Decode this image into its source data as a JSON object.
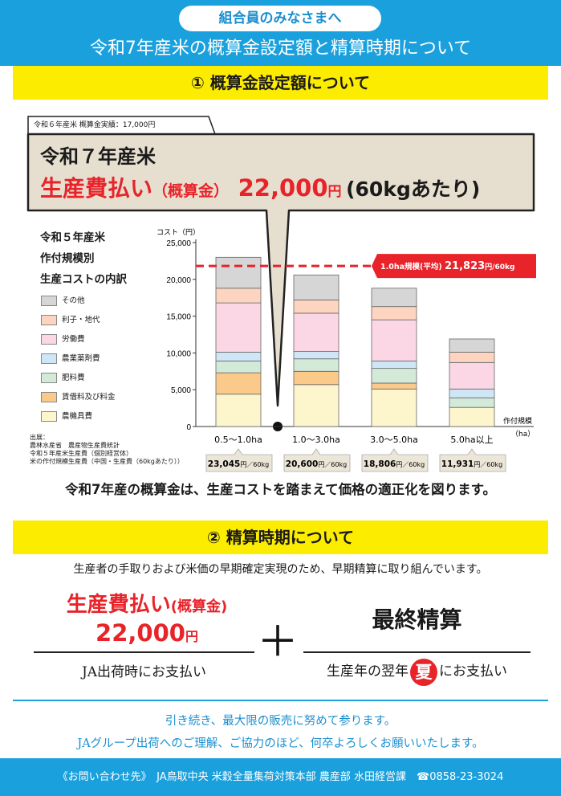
{
  "header": {
    "pill": "組合員のみなさまへ",
    "title": "令和7年産米の概算金設定額と精算時期について"
  },
  "section1": {
    "title": "① 概算金設定額について",
    "prev_tab": "令和６年産米 概算金実績：17,000円",
    "headline_year": "令和７年産米",
    "headline_label": "生産費払い",
    "headline_paren": "（概算金）",
    "headline_amount": "22,000",
    "headline_yen": "円",
    "headline_per": "(60kgあたり)",
    "chart_heading": [
      "令和５年産米",
      "作付規模別",
      "生産コストの内訳"
    ],
    "source_lines": [
      "出展：",
      "農林水産省　農産物生産費統計",
      "令和５年産米生産費（個別経営体）",
      "米の作付規模生産費（中国・生産費（60kgあたり））"
    ],
    "statement": "令和7年産の概算金は、生産コストを踏まえて価格の適正化を図ります。"
  },
  "chart_data": {
    "type": "bar",
    "stacked": true,
    "categories": [
      "0.5～1.0ha",
      "1.0～3.0ha",
      "3.0～5.0ha",
      "5.0ha以上"
    ],
    "totals": [
      "23,045",
      "20,600",
      "18,806",
      "11,931"
    ],
    "total_unit": "円／60kg",
    "series": [
      {
        "name": "農機具費",
        "color": "#fdf5cc",
        "values": [
          4400,
          5700,
          5100,
          2600
        ]
      },
      {
        "name": "賃借料及び料金",
        "color": "#fbc98a",
        "values": [
          2900,
          1800,
          800,
          0
        ]
      },
      {
        "name": "肥料費",
        "color": "#d4ead9",
        "values": [
          1600,
          1700,
          2000,
          1300
        ]
      },
      {
        "name": "農業薬剤費",
        "color": "#cfe6f7",
        "values": [
          1200,
          1000,
          1000,
          1200
        ]
      },
      {
        "name": "労働費",
        "color": "#fbd7e6",
        "values": [
          6700,
          5200,
          5600,
          3600
        ]
      },
      {
        "name": "利子・地代",
        "color": "#fcd4c0",
        "values": [
          2000,
          1800,
          1800,
          1400
        ]
      },
      {
        "name": "その他",
        "color": "#d6d6d6",
        "values": [
          4200,
          3400,
          2500,
          1800
        ]
      }
    ],
    "ylabel": "コスト（円）",
    "xlabel": "作付規模（ha）",
    "ylim": [
      0,
      25000
    ],
    "yticks": [
      "0",
      "5,000",
      "10,000",
      "15,000",
      "20,000",
      "25,000"
    ],
    "reference": {
      "value": 21823,
      "label": "1.0ha規模(平均)",
      "value_text": "21,823",
      "unit": "円/60kg",
      "color": "#e8232a"
    }
  },
  "section2": {
    "title": "② 精算時期について",
    "intro": "生産者の手取りおよび米価の早期確定実現のため、早期精算に取り組んでいます。",
    "left_label": "生産費払い",
    "left_paren": "(概算金)",
    "left_amount": "22,000",
    "left_yen": "円",
    "left_timing": "JA出荷時にお支払い",
    "plus": "＋",
    "right_label": "最終精算",
    "right_timing_pre": "生産年の翌年",
    "right_timing_badge": "夏",
    "right_timing_post": "にお支払い"
  },
  "closing": {
    "line1": "引き続き、最大限の販売に努めて参ります。",
    "line2": "JAグループ出荷へのご理解、ご協力のほど、何卒よろしくお願いいたします。"
  },
  "footer": {
    "text": "《お問い合わせ先》　JA鳥取中央 米穀全量集荷対策本部 農産部 水田経営課　☎0858-23-3024"
  },
  "colors": {
    "brand_blue": "#1aa0dc",
    "highlight_yellow": "#fcec00",
    "accent_red": "#e8232a",
    "callout_fill": "#e6dfd0"
  }
}
